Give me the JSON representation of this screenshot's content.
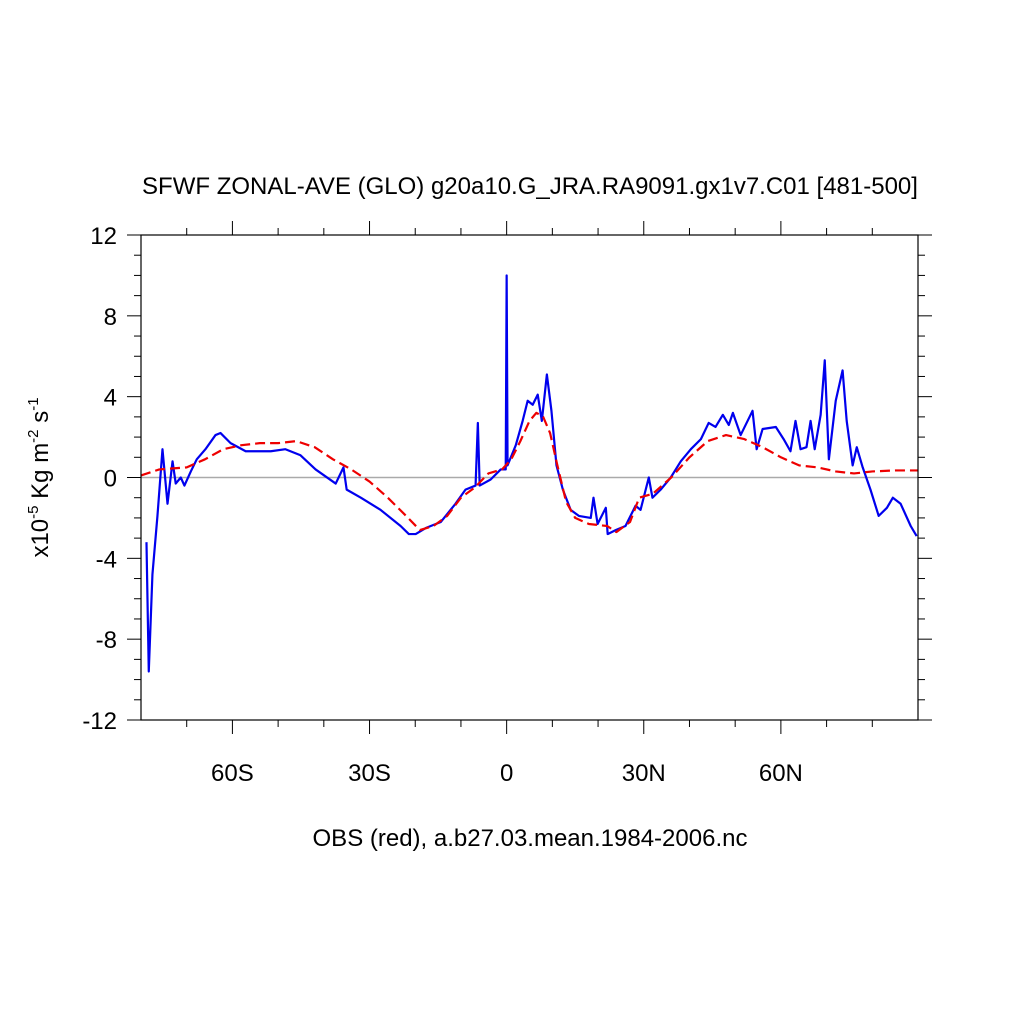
{
  "chart_data": {
    "type": "line",
    "title": "SFWF ZONAL-AVE (GLO) g20a10.G_JRA.RA9091.gx1v7.C01 [481-500]",
    "xlabel": "OBS (red), a.b27.03.mean.1984-2006.nc",
    "ylabel": [
      "x10",
      "-5",
      " Kg m",
      "-2",
      " s",
      "-1"
    ],
    "xlim": [
      -80,
      90
    ],
    "ylim": [
      -12,
      12
    ],
    "xticks": [
      {
        "value": -60,
        "label": "60S"
      },
      {
        "value": -30,
        "label": "30S"
      },
      0,
      {
        "value": 30,
        "label": "30N"
      },
      {
        "value": 60,
        "label": "60N"
      }
    ],
    "xminorticks": [
      -70,
      -50,
      -40,
      -20,
      -10,
      10,
      20,
      40,
      50,
      70,
      80
    ],
    "yticks": [
      -12,
      -8,
      -4,
      0,
      4,
      8,
      12
    ],
    "yminorticks": [
      -11,
      -10,
      -9,
      -7,
      -6,
      -5,
      -3,
      -2,
      -1,
      1,
      2,
      3,
      5,
      6,
      7,
      9,
      10,
      11
    ],
    "reference_line": 0,
    "series": [
      {
        "color": "#0000ee",
        "dash": "none",
        "x": [
          -78.8,
          -78.3,
          -77.5,
          -76.4,
          -75.3,
          -74.2,
          -73.1,
          -72.4,
          -71.3,
          -70.5,
          -69.1,
          -67.8,
          -65.9,
          -63.7,
          -62.6,
          -60.4,
          -57.1,
          -51.6,
          -48.4,
          -45.1,
          -41.8,
          -37.4,
          -35.7,
          -35,
          -31.9,
          -27.6,
          -23.2,
          -21.4,
          -19.9,
          -17.7,
          -14.4,
          -11.2,
          -9,
          -6.8,
          -6.3,
          -5.9,
          -3.5,
          -1.3,
          -0.2,
          0,
          0.2,
          2,
          3.5,
          4.6,
          5.7,
          6.8,
          7.7,
          8.8,
          9.8,
          10.9,
          12.3,
          14,
          15.8,
          18.4,
          19,
          19.9,
          21.7,
          22.1,
          23.9,
          26,
          28.2,
          29.3,
          31.1,
          31.9,
          33.7,
          35.9,
          38.1,
          40.3,
          42.5,
          44.2,
          45.7,
          47.3,
          48.6,
          49.5,
          51.2,
          53.8,
          54.7,
          56,
          58.9,
          60.6,
          62.1,
          63.2,
          64.3,
          65.6,
          66.5,
          67.4,
          68.7,
          69.6,
          70.5,
          72,
          73.5,
          74.4,
          75.7,
          76.6,
          77.9,
          79.6,
          81.4,
          83.2,
          84.5,
          86.2,
          88.4,
          89.7
        ],
        "values": [
          -3.2,
          -9.6,
          -4.8,
          -1.9,
          1.4,
          -1.3,
          0.8,
          -0.3,
          0,
          -0.4,
          0.3,
          0.9,
          1.4,
          2.1,
          2.2,
          1.7,
          1.3,
          1.3,
          1.4,
          1.1,
          0.4,
          -0.3,
          0.5,
          -0.6,
          -1.0,
          -1.6,
          -2.4,
          -2.8,
          -2.8,
          -2.5,
          -2.2,
          -1.3,
          -0.6,
          -0.4,
          2.7,
          -0.4,
          -0.1,
          0.4,
          0.4,
          10,
          0.6,
          1.6,
          2.8,
          3.8,
          3.6,
          4.1,
          2.8,
          5.1,
          3.3,
          0.6,
          -0.6,
          -1.6,
          -1.9,
          -2.0,
          -1,
          -2.3,
          -1.5,
          -2.8,
          -2.6,
          -2.4,
          -1.4,
          -1.6,
          0,
          -1,
          -0.6,
          0,
          0.8,
          1.4,
          1.9,
          2.7,
          2.5,
          3.1,
          2.6,
          3.2,
          2.1,
          3.3,
          1.4,
          2.4,
          2.5,
          1.9,
          1.3,
          2.8,
          1.4,
          1.5,
          2.8,
          1.4,
          3.1,
          5.8,
          0.9,
          3.8,
          5.3,
          2.8,
          0.6,
          1.5,
          0.5,
          -0.6,
          -1.9,
          -1.5,
          -1,
          -1.3,
          -2.4,
          -2.9
        ]
      },
      {
        "color": "#ee0000",
        "dash": "10,5",
        "x": [
          -80,
          -76,
          -70,
          -66,
          -62,
          -58,
          -54,
          -50,
          -46,
          -42,
          -38,
          -34,
          -30,
          -26,
          -22,
          -19,
          -16,
          -13,
          -10,
          -7,
          -4,
          -1,
          1,
          3,
          5,
          6.5,
          8,
          9.5,
          11,
          13,
          15,
          18,
          22,
          24,
          27,
          29,
          32,
          36,
          40,
          44,
          48,
          52,
          56,
          60,
          64,
          68,
          72,
          76,
          80,
          85,
          90
        ],
        "values": [
          0.1,
          0.4,
          0.5,
          0.9,
          1.4,
          1.6,
          1.7,
          1.7,
          1.8,
          1.5,
          0.9,
          0.4,
          -0.2,
          -1.0,
          -1.9,
          -2.6,
          -2.4,
          -1.9,
          -1.0,
          -0.5,
          0.2,
          0.4,
          0.9,
          1.8,
          2.8,
          3.2,
          3.0,
          2.2,
          0.7,
          -1.2,
          -2.0,
          -2.3,
          -2.4,
          -2.7,
          -2.2,
          -1.0,
          -0.8,
          0,
          1.0,
          1.8,
          2.1,
          1.9,
          1.5,
          1.0,
          0.6,
          0.5,
          0.3,
          0.2,
          0.3,
          0.35,
          0.35
        ]
      }
    ]
  }
}
